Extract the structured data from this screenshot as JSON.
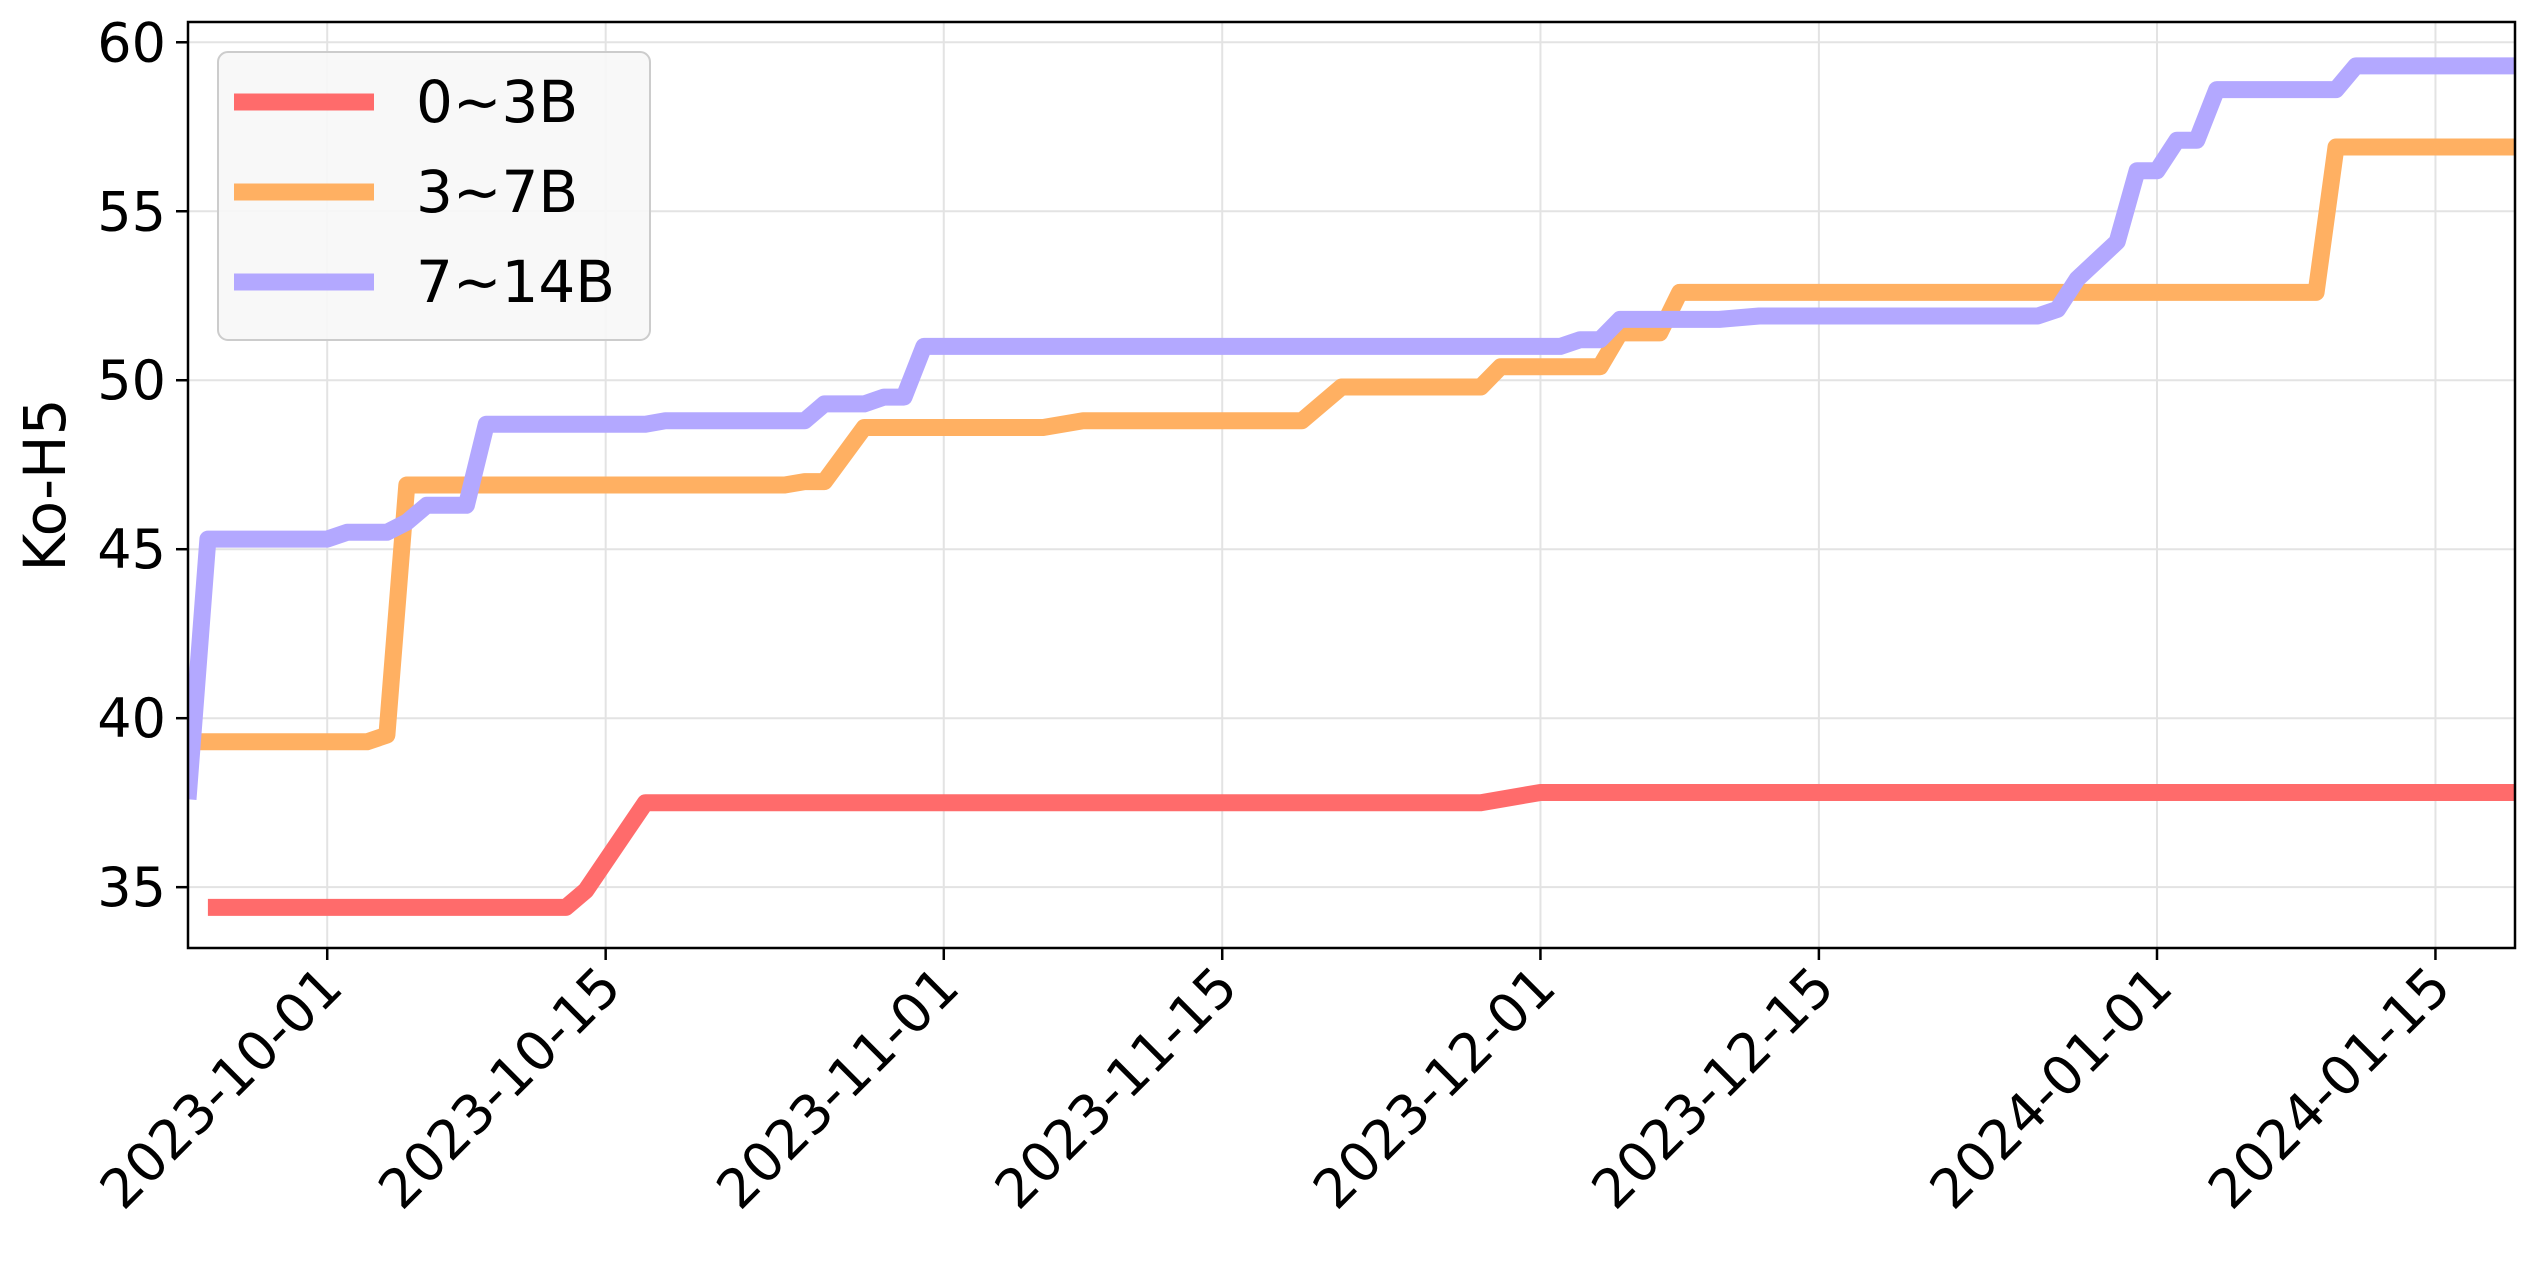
{
  "chart_data": {
    "type": "line",
    "title": "",
    "xlabel": "",
    "ylabel": "Ko-H5",
    "x_axis_type": "date",
    "xlim": [
      "2023-09-24",
      "2024-01-19"
    ],
    "ylim": [
      33.2,
      60.6
    ],
    "x_ticks": [
      "2023-10-01",
      "2023-10-15",
      "2023-11-01",
      "2023-11-15",
      "2023-12-01",
      "2023-12-15",
      "2024-01-01",
      "2024-01-15"
    ],
    "y_ticks": [
      35,
      40,
      45,
      50,
      55,
      60
    ],
    "grid": true,
    "legend_position": "top-left",
    "series": [
      {
        "name": "0~3B",
        "color": "#ff6b6b",
        "points": [
          {
            "x": "2023-09-25",
            "y": 34.4
          },
          {
            "x": "2023-10-13",
            "y": 34.4
          },
          {
            "x": "2023-10-14",
            "y": 34.9
          },
          {
            "x": "2023-10-17",
            "y": 37.5
          },
          {
            "x": "2023-11-28",
            "y": 37.5
          },
          {
            "x": "2023-12-01",
            "y": 37.8
          },
          {
            "x": "2024-01-19",
            "y": 37.8
          }
        ]
      },
      {
        "name": "3~7B",
        "color": "#ffb062",
        "points": [
          {
            "x": "2023-09-24",
            "y": 39.3
          },
          {
            "x": "2023-10-01",
            "y": 39.3
          },
          {
            "x": "2023-10-03",
            "y": 39.3
          },
          {
            "x": "2023-10-04",
            "y": 39.5
          },
          {
            "x": "2023-10-05",
            "y": 46.9
          },
          {
            "x": "2023-10-24",
            "y": 46.9
          },
          {
            "x": "2023-10-25",
            "y": 47.0
          },
          {
            "x": "2023-10-26",
            "y": 47.0
          },
          {
            "x": "2023-10-28",
            "y": 48.6
          },
          {
            "x": "2023-11-06",
            "y": 48.6
          },
          {
            "x": "2023-11-08",
            "y": 48.8
          },
          {
            "x": "2023-11-19",
            "y": 48.8
          },
          {
            "x": "2023-11-21",
            "y": 49.8
          },
          {
            "x": "2023-11-28",
            "y": 49.8
          },
          {
            "x": "2023-11-29",
            "y": 50.4
          },
          {
            "x": "2023-12-04",
            "y": 50.4
          },
          {
            "x": "2023-12-05",
            "y": 51.4
          },
          {
            "x": "2023-12-07",
            "y": 51.4
          },
          {
            "x": "2023-12-08",
            "y": 52.6
          },
          {
            "x": "2024-01-09",
            "y": 52.6
          },
          {
            "x": "2024-01-10",
            "y": 56.9
          },
          {
            "x": "2024-01-19",
            "y": 56.9
          }
        ]
      },
      {
        "name": "7~14B",
        "color": "#b3a8ff",
        "points": [
          {
            "x": "2023-09-24",
            "y": 37.6
          },
          {
            "x": "2023-09-25",
            "y": 45.3
          },
          {
            "x": "2023-10-01",
            "y": 45.3
          },
          {
            "x": "2023-10-02",
            "y": 45.5
          },
          {
            "x": "2023-10-04",
            "y": 45.5
          },
          {
            "x": "2023-10-05",
            "y": 45.8
          },
          {
            "x": "2023-10-06",
            "y": 46.3
          },
          {
            "x": "2023-10-08",
            "y": 46.3
          },
          {
            "x": "2023-10-09",
            "y": 48.7
          },
          {
            "x": "2023-10-17",
            "y": 48.7
          },
          {
            "x": "2023-10-18",
            "y": 48.8
          },
          {
            "x": "2023-10-25",
            "y": 48.8
          },
          {
            "x": "2023-10-26",
            "y": 49.3
          },
          {
            "x": "2023-10-28",
            "y": 49.3
          },
          {
            "x": "2023-10-29",
            "y": 49.5
          },
          {
            "x": "2023-10-30",
            "y": 49.5
          },
          {
            "x": "2023-10-31",
            "y": 51.0
          },
          {
            "x": "2023-12-02",
            "y": 51.0
          },
          {
            "x": "2023-12-03",
            "y": 51.2
          },
          {
            "x": "2023-12-04",
            "y": 51.2
          },
          {
            "x": "2023-12-05",
            "y": 51.8
          },
          {
            "x": "2023-12-10",
            "y": 51.8
          },
          {
            "x": "2023-12-12",
            "y": 51.9
          },
          {
            "x": "2023-12-26",
            "y": 51.9
          },
          {
            "x": "2023-12-27",
            "y": 52.1
          },
          {
            "x": "2023-12-28",
            "y": 53.0
          },
          {
            "x": "2023-12-30",
            "y": 54.1
          },
          {
            "x": "2023-12-31",
            "y": 56.2
          },
          {
            "x": "2024-01-01",
            "y": 56.2
          },
          {
            "x": "2024-01-02",
            "y": 57.1
          },
          {
            "x": "2024-01-03",
            "y": 57.1
          },
          {
            "x": "2024-01-04",
            "y": 58.6
          },
          {
            "x": "2024-01-10",
            "y": 58.6
          },
          {
            "x": "2024-01-11",
            "y": 59.3
          },
          {
            "x": "2024-01-19",
            "y": 59.3
          }
        ]
      }
    ]
  }
}
